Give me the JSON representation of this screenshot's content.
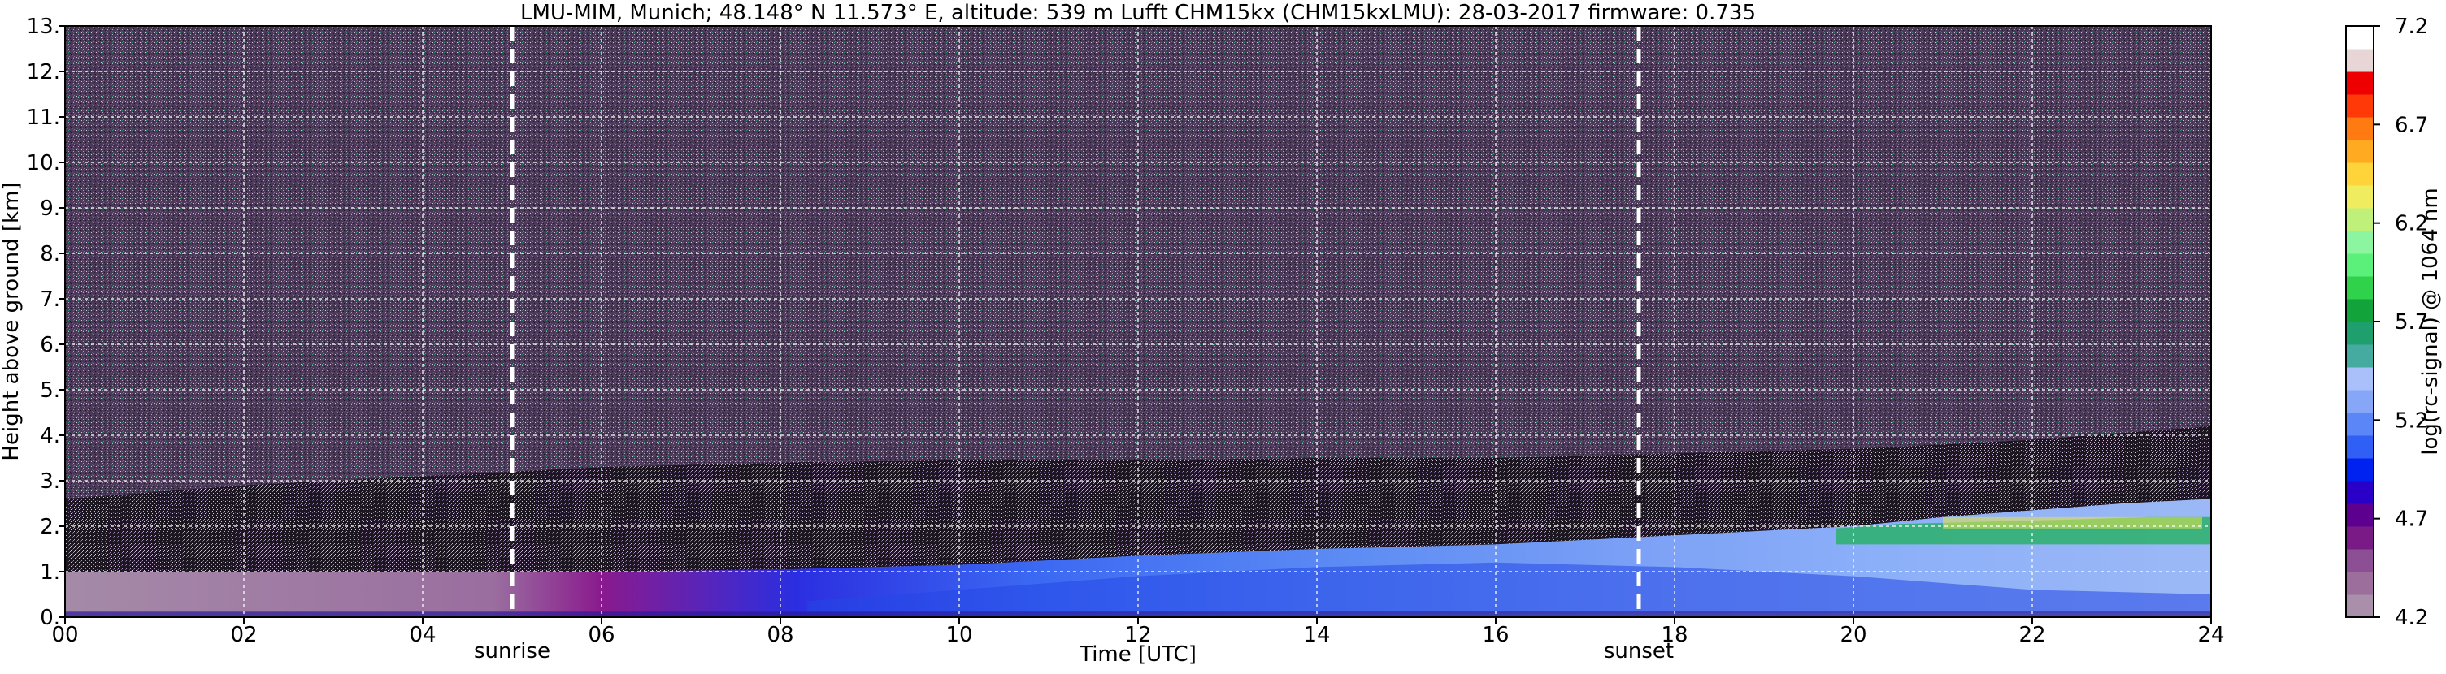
{
  "chart_data": {
    "type": "heatmap",
    "title": "LMU-MIM, Munich; 48.148° N 11.573° E, altitude: 539 m    Lufft CHM15kx (CHM15kxLMU): 28-03-2017    firmware: 0.735",
    "xlabel": "Time [UTC]",
    "ylabel": "Height above ground [km]",
    "xlim": [
      0,
      24
    ],
    "ylim": [
      0,
      13
    ],
    "x_ticks": [
      "00",
      "02",
      "04",
      "06",
      "08",
      "10",
      "12",
      "14",
      "16",
      "18",
      "20",
      "22",
      "24"
    ],
    "y_ticks": [
      "0.",
      "1.",
      "2.",
      "3.",
      "4.",
      "5.",
      "6.",
      "7.",
      "8.",
      "9.",
      "10.",
      "11.",
      "12.",
      "13."
    ],
    "grid": true,
    "colorbar": {
      "label": "log(rc-signal) @ 1064 nm",
      "ticks": [
        "4.2",
        "4.7",
        "5.2",
        "5.7",
        "6.2",
        "6.7",
        "7.2"
      ],
      "range": [
        4.2,
        7.2
      ],
      "colors": [
        "#a98fa9",
        "#9b6e9c",
        "#8c4f93",
        "#7a1a86",
        "#5e008f",
        "#2a00c8",
        "#0022f0",
        "#2f5ff5",
        "#5a86f7",
        "#86a7f8",
        "#a9c0fb",
        "#45aaa0",
        "#1f9e6e",
        "#12a33a",
        "#2fd24a",
        "#5af07a",
        "#8cf5a0",
        "#bff07a",
        "#f0ec60",
        "#ffd43a",
        "#ffaa20",
        "#ff7a10",
        "#ff3a08",
        "#ee0000",
        "#e8d6d6",
        "#ffffff"
      ]
    },
    "markers": [
      {
        "label": "sunrise",
        "x": 5.0
      },
      {
        "label": "sunset",
        "x": 17.6
      }
    ],
    "layers": [
      {
        "name": "boundary_layer_top_km",
        "x": [
          0,
          2,
          4,
          5,
          6,
          8,
          10,
          12,
          14,
          16,
          18,
          20,
          21,
          22,
          23,
          24
        ],
        "y": [
          1.0,
          1.0,
          1.0,
          1.0,
          1.0,
          1.05,
          1.15,
          1.35,
          1.5,
          1.6,
          1.8,
          2.0,
          2.2,
          2.35,
          2.5,
          2.6
        ]
      },
      {
        "name": "noise_onset_km",
        "x": [
          0,
          2,
          4,
          6,
          8,
          10,
          12,
          14,
          16,
          18,
          20,
          22,
          24
        ],
        "y": [
          1.0,
          1.3,
          1.5,
          1.7,
          1.8,
          1.85,
          1.85,
          1.9,
          1.9,
          2.0,
          2.1,
          2.3,
          2.6
        ]
      }
    ]
  }
}
